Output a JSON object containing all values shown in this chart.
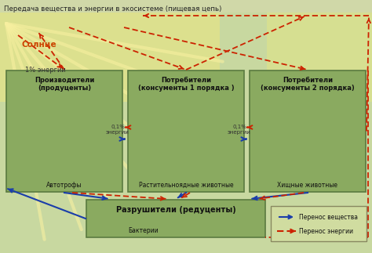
{
  "title": "Передача вещества и энергии в экосистеме (пищевая цепь)",
  "bg_top_color": "#c8d8a0",
  "bg_bottom_color": "#c8d890",
  "sun_label": "Солнце",
  "energy_1pct": "1% энергии",
  "energy_01pct": "0,1%\nэнергии",
  "box_color": "#8aaa60",
  "box_edge_color": "#5a7a40",
  "box_title_color": "#111111",
  "matter_arrow_color": "#1a3daa",
  "energy_arrow_color": "#cc2200",
  "sun_text_color": "#cc4400",
  "title_color": "#222222",
  "legend_bg": "#d0dca0",
  "legend_border": "#888860",
  "boxes_main": [
    {
      "label": "Производители\n(продуценты)",
      "sub": "Автотрофы"
    },
    {
      "label": "Потребители\n(консументы 1 порядка )",
      "sub": "Растительноядные животные"
    },
    {
      "label": "Потребители\n(консументы 2 порядка)",
      "sub": "Хищные животные"
    }
  ],
  "box_decomp_label": "Разрушители (редуценты)",
  "box_decomp_sub": "Бактерии",
  "legend_matter": "Перенос вещества",
  "legend_energy": "Перенос энергии"
}
